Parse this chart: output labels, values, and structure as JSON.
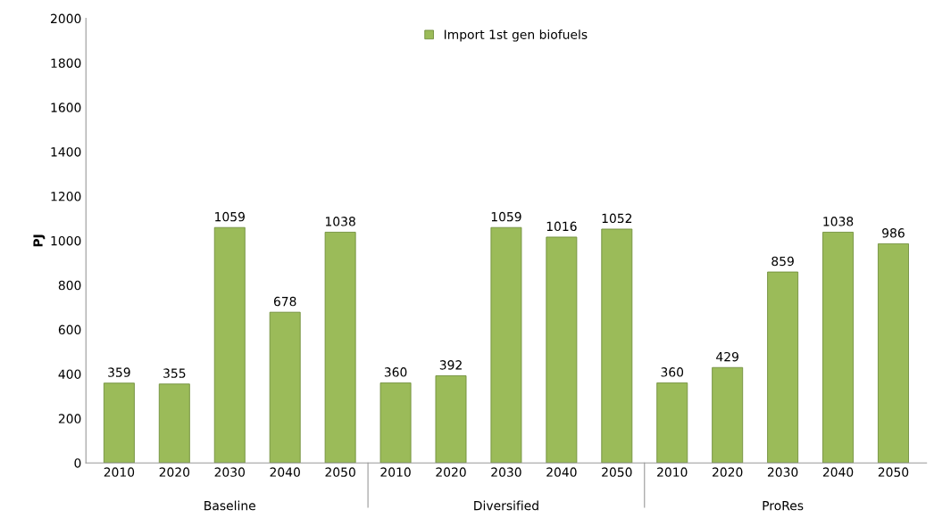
{
  "chart_data": {
    "type": "bar",
    "ylabel": "PJ",
    "categories": [
      "2010",
      "2020",
      "2030",
      "2040",
      "2050",
      "2010",
      "2020",
      "2030",
      "2040",
      "2050",
      "2010",
      "2020",
      "2030",
      "2040",
      "2050"
    ],
    "series": [
      {
        "name": "Import 1st gen biofuels",
        "color": "#9bbb59",
        "values": [
          359,
          355,
          1059,
          678,
          1038,
          360,
          392,
          1059,
          1016,
          1052,
          360,
          429,
          859,
          1038,
          986
        ]
      }
    ],
    "annotations": [
      "Baseline",
      "Diversified",
      "ProRes"
    ],
    "ylim": [
      0,
      2000
    ],
    "yticks": [
      0,
      200,
      400,
      600,
      800,
      1000,
      1200,
      1400,
      1600,
      1800,
      2000
    ],
    "data_labels": true,
    "grid": false,
    "legend": "top"
  }
}
